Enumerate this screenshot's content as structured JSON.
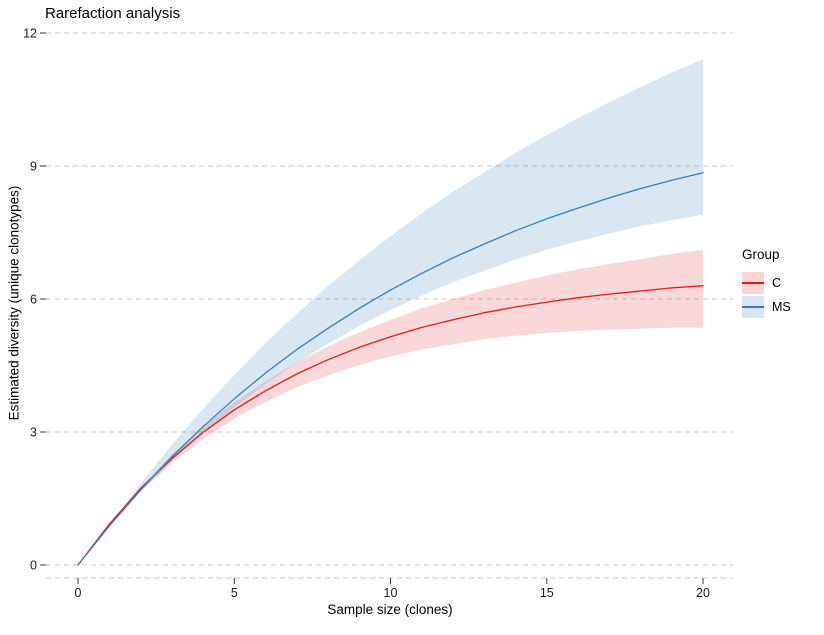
{
  "title": "Rarefaction analysis",
  "axes": {
    "x_label": "Sample size (clones)",
    "y_label": "Estimated diversity (unique clonotypes)"
  },
  "legend": {
    "title": "Group",
    "entries": [
      {
        "label": "C",
        "line_color": "#E41A1C",
        "key_fill": "#FAD6D6"
      },
      {
        "label": "MS",
        "line_color": "#377EB8",
        "key_fill": "#D9E6F2"
      }
    ]
  },
  "colors": {
    "grid": "#C9C9C9",
    "tick": "#333333",
    "tick_label": "#1A1A1A",
    "background": "#FFFFFF"
  },
  "chart_data": {
    "type": "line",
    "title": "Rarefaction analysis",
    "xlabel": "Sample size (clones)",
    "ylabel": "Estimated diversity (unique clonotypes)",
    "xlim": [
      0,
      20
    ],
    "ylim": [
      0,
      12
    ],
    "xticks": [
      0,
      5,
      10,
      15,
      20
    ],
    "yticks": [
      0,
      3,
      6,
      9,
      12
    ],
    "grid": "horizontal-dashed",
    "legend_position": "right",
    "x": [
      0,
      1,
      2,
      3,
      4,
      5,
      6,
      7,
      8,
      9,
      10,
      11,
      12,
      13,
      14,
      15,
      16,
      17,
      18,
      19,
      20
    ],
    "series": [
      {
        "name": "C",
        "color": "#E41A1C",
        "fill": "#E41A1C",
        "fill_opacity": 0.17,
        "values": [
          0,
          0.92,
          1.72,
          2.4,
          2.99,
          3.5,
          3.93,
          4.31,
          4.63,
          4.91,
          5.15,
          5.36,
          5.53,
          5.69,
          5.82,
          5.93,
          6.03,
          6.11,
          6.18,
          6.25,
          6.3
        ],
        "lower": [
          0,
          0.92,
          1.67,
          2.3,
          2.84,
          3.3,
          3.68,
          4.01,
          4.28,
          4.51,
          4.7,
          4.86,
          4.98,
          5.09,
          5.17,
          5.23,
          5.28,
          5.31,
          5.33,
          5.35,
          5.35
        ],
        "upper": [
          0,
          0.92,
          1.76,
          2.49,
          3.12,
          3.67,
          4.14,
          4.57,
          4.93,
          5.25,
          5.53,
          5.79,
          6.0,
          6.2,
          6.37,
          6.53,
          6.67,
          6.79,
          6.9,
          7.02,
          7.11
        ]
      },
      {
        "name": "MS",
        "color": "#377EB8",
        "fill": "#377EB8",
        "fill_opacity": 0.19,
        "values": [
          0,
          0.88,
          1.69,
          2.44,
          3.12,
          3.75,
          4.33,
          4.86,
          5.34,
          5.79,
          6.2,
          6.58,
          6.93,
          7.24,
          7.54,
          7.81,
          8.05,
          8.28,
          8.49,
          8.68,
          8.85
        ],
        "lower": [
          0,
          0.88,
          1.64,
          2.34,
          2.97,
          3.55,
          4.08,
          4.56,
          4.99,
          5.39,
          5.75,
          6.08,
          6.38,
          6.64,
          6.89,
          7.11,
          7.3,
          7.48,
          7.64,
          7.78,
          7.9
        ],
        "upper": [
          0,
          0.88,
          1.83,
          2.71,
          3.53,
          4.29,
          5.01,
          5.67,
          6.29,
          6.87,
          7.42,
          7.93,
          8.42,
          8.86,
          9.3,
          9.7,
          10.08,
          10.44,
          10.78,
          11.11,
          11.41
        ]
      }
    ]
  }
}
